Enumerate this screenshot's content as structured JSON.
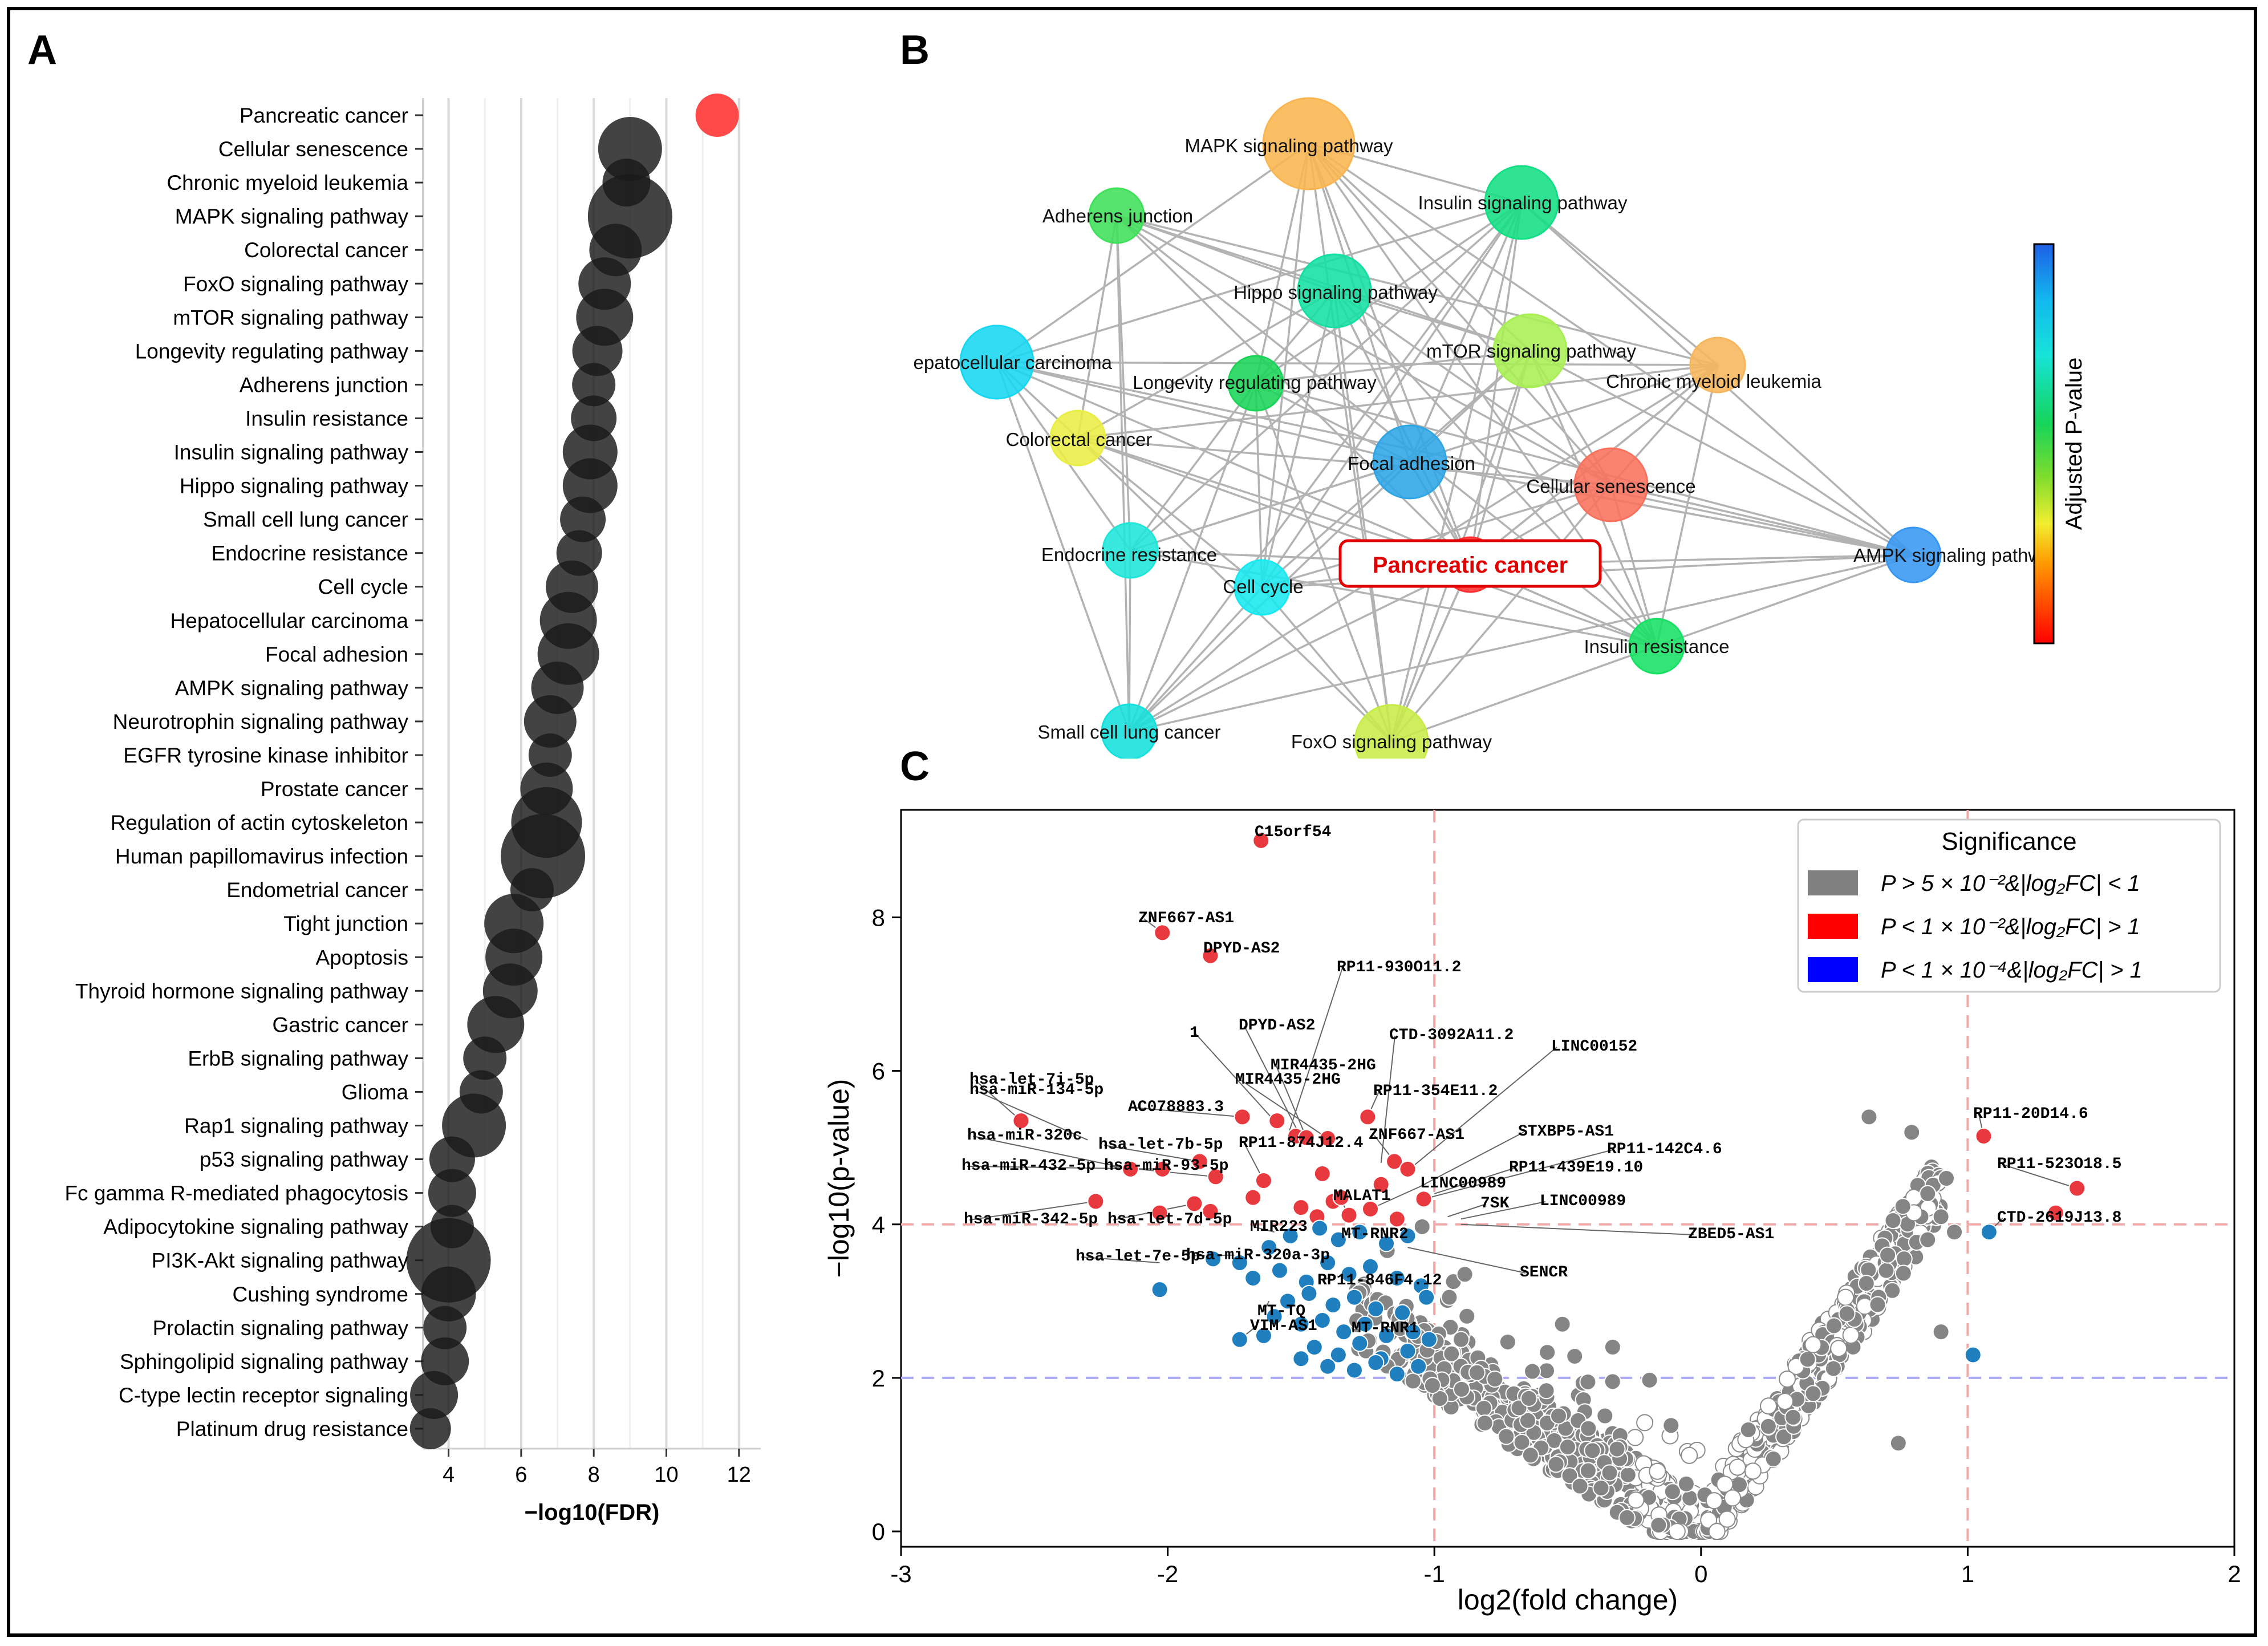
{
  "panels": {
    "a": "A",
    "b": "B",
    "c": "C"
  },
  "chart_data": [
    {
      "type": "scatter",
      "panel": "A",
      "xlabel": "−log10(FDR)",
      "xlim": [
        3.3,
        12.6
      ],
      "xticks": [
        4,
        6,
        8,
        10,
        12
      ],
      "categories": [
        "Pancreatic cancer",
        "Cellular senescence",
        "Chronic myeloid leukemia",
        "MAPK signaling pathway",
        "Colorectal cancer",
        "FoxO signaling pathway",
        "mTOR signaling pathway",
        "Longevity regulating pathway",
        "Adherens junction",
        "Insulin resistance",
        "Insulin signaling pathway",
        "Hippo signaling pathway",
        "Small cell lung cancer",
        "Endocrine resistance",
        "Cell cycle",
        "Hepatocellular carcinoma",
        "Focal adhesion",
        "AMPK signaling pathway",
        "Neurotrophin signaling pathway",
        "EGFR tyrosine kinase inhibitor",
        "Prostate cancer",
        "Regulation of actin cytoskeleton",
        "Human papillomavirus infection",
        "Endometrial cancer",
        "Tight junction",
        "Apoptosis",
        "Thyroid hormone signaling pathway",
        "Gastric cancer",
        "ErbB signaling pathway",
        "Glioma",
        "Rap1 signaling pathway",
        "p53 signaling pathway",
        "Fc gamma R-mediated phagocytosis",
        "Adipocytokine signaling pathway",
        "PI3K-Akt signaling pathway",
        "Cushing syndrome",
        "Prolactin signaling pathway",
        "Sphingolipid signaling pathway",
        "C-type lectin receptor signaling",
        "Platinum drug resistance"
      ],
      "values": [
        11.4,
        9.0,
        8.9,
        9.0,
        8.6,
        8.3,
        8.3,
        8.1,
        8.0,
        8.0,
        7.9,
        7.9,
        7.7,
        7.6,
        7.4,
        7.3,
        7.3,
        7.0,
        6.8,
        6.8,
        6.7,
        6.7,
        6.6,
        6.3,
        5.8,
        5.8,
        5.7,
        5.3,
        5.0,
        4.9,
        4.7,
        4.1,
        4.1,
        4.1,
        4.0,
        4.0,
        3.9,
        3.9,
        3.6,
        3.5
      ],
      "sizes": [
        38,
        56,
        42,
        74,
        46,
        46,
        50,
        44,
        38,
        40,
        48,
        48,
        40,
        40,
        46,
        50,
        54,
        46,
        46,
        38,
        46,
        62,
        74,
        38,
        52,
        50,
        48,
        50,
        38,
        38,
        56,
        40,
        42,
        38,
        74,
        48,
        38,
        42,
        42,
        36
      ],
      "highlight": "Pancreatic cancer",
      "colors": {
        "highlight": "#ff4a4a",
        "default": "#1a1a1a"
      }
    },
    {
      "type": "network",
      "panel": "B",
      "legend_title": "Adjusted P-value",
      "nodes": [
        {
          "label": "MAPK signaling pathway",
          "color": "#f9b650",
          "size": "large"
        },
        {
          "label": "Adherens junction",
          "color": "#3fe05a",
          "size": "small"
        },
        {
          "label": "Insulin signaling pathway",
          "color": "#12df84",
          "size": "medium"
        },
        {
          "label": "Hippo signaling pathway",
          "color": "#14dfa2",
          "size": "medium"
        },
        {
          "label": "Hepatocellular carcinoma",
          "color": "#17d7f0",
          "size": "medium"
        },
        {
          "label": "mTOR signaling pathway",
          "color": "#a8ef54",
          "size": "medium"
        },
        {
          "label": "Chronic myeloid leukemia",
          "color": "#f8b65c",
          "size": "small"
        },
        {
          "label": "Longevity regulating pathway",
          "color": "#1ad458",
          "size": "small"
        },
        {
          "label": "Colorectal cancer",
          "color": "#eaee43",
          "size": "small"
        },
        {
          "label": "Focal adhesion",
          "color": "#2ea5e5",
          "size": "medium"
        },
        {
          "label": "Cellular senescence",
          "color": "#f9715d",
          "size": "medium"
        },
        {
          "label": "Endocrine resistance",
          "color": "#1ee6d8",
          "size": "small"
        },
        {
          "label": "Cell cycle",
          "color": "#18e8ef",
          "size": "small"
        },
        {
          "label": "Pancreatic cancer",
          "color": "#ff3030",
          "size": "small"
        },
        {
          "label": "AMPK signaling pathway",
          "color": "#3797f2",
          "size": "small"
        },
        {
          "label": "Insulin resistance",
          "color": "#17e064",
          "size": "small"
        },
        {
          "label": "Small cell lung cancer",
          "color": "#14e0dc",
          "size": "small"
        },
        {
          "label": "FoxO signaling pathway",
          "color": "#c7ec48",
          "size": "medium"
        }
      ],
      "node_labels_display": [
        "MAPK signaling pathway",
        "Adherens junction",
        "Insulin signaling pathway",
        "Hippo signaling pathway",
        "epatocellular carcinoma",
        "mTOR signaling pathway",
        "Chronic myeloid leukemia",
        "Longevity regulating pathway",
        "Colorectal cancer",
        "Focal adhesion",
        "Cellular senescence",
        "Endocrine resistance",
        "Cell cycle",
        "Pancreatic cancer",
        "AMPK signaling pathwa",
        "Insulin resistance",
        "Small cell lung cancer",
        "FoxO signaling pathway"
      ]
    },
    {
      "type": "scatter",
      "panel": "C",
      "xlabel": "log2(fold change)",
      "ylabel": "−log10(p-value)",
      "xlim": [
        -3,
        2
      ],
      "ylim": [
        -0.2,
        9.4
      ],
      "xticks": [
        -3,
        -2,
        -1,
        0,
        1,
        2
      ],
      "yticks": [
        0,
        2,
        4,
        6,
        8
      ],
      "thresholds": {
        "x": [
          -1,
          1
        ],
        "y_red": 4,
        "y_blue": 2
      },
      "legend": {
        "title": "Significance",
        "entries": [
          {
            "text": "P > 5 × 10⁻²&|log₂FC| < 1",
            "color": "#808080"
          },
          {
            "text": "P < 1 × 10⁻²&|log₂FC| > 1",
            "color": "#ff0000"
          },
          {
            "text": "P < 1 × 10⁻⁴&|log₂FC| > 1",
            "color": "#0000ff"
          }
        ]
      },
      "colors": {
        "red": "#e8393f",
        "blue": "#1f7fbf",
        "grey": "#858585"
      },
      "red_points": [
        [
          -1.65,
          9.0
        ],
        [
          -2.02,
          7.8
        ],
        [
          -1.84,
          7.5
        ],
        [
          -2.55,
          5.35
        ],
        [
          -1.72,
          5.4
        ],
        [
          -1.59,
          5.35
        ],
        [
          -1.52,
          5.15
        ],
        [
          -1.48,
          5.13
        ],
        [
          -1.4,
          5.12
        ],
        [
          -1.25,
          5.4
        ],
        [
          -2.14,
          4.72
        ],
        [
          -2.02,
          4.72
        ],
        [
          -1.88,
          4.82
        ],
        [
          -1.82,
          4.62
        ],
        [
          -1.64,
          4.57
        ],
        [
          -1.42,
          4.66
        ],
        [
          -1.15,
          4.82
        ],
        [
          -1.1,
          4.72
        ],
        [
          -1.2,
          4.52
        ],
        [
          -2.27,
          4.3
        ],
        [
          -2.03,
          4.15
        ],
        [
          -1.9,
          4.27
        ],
        [
          -1.84,
          4.17
        ],
        [
          -1.68,
          4.35
        ],
        [
          -1.5,
          4.22
        ],
        [
          -1.38,
          4.3
        ],
        [
          -1.32,
          4.12
        ],
        [
          -1.24,
          4.2
        ],
        [
          -1.14,
          4.07
        ],
        [
          -1.04,
          4.33
        ],
        [
          -1.44,
          4.1
        ],
        [
          -1.35,
          4.35
        ],
        [
          1.06,
          5.15
        ],
        [
          1.41,
          4.47
        ],
        [
          1.33,
          4.15
        ]
      ],
      "blue_points": [
        [
          -2.03,
          3.15
        ],
        [
          -1.83,
          3.55
        ],
        [
          -1.73,
          3.5
        ],
        [
          -1.62,
          3.7
        ],
        [
          -1.54,
          3.85
        ],
        [
          -1.43,
          3.95
        ],
        [
          -1.36,
          3.8
        ],
        [
          -1.28,
          3.9
        ],
        [
          -1.18,
          3.75
        ],
        [
          -1.1,
          3.85
        ],
        [
          -1.68,
          3.3
        ],
        [
          -1.58,
          3.4
        ],
        [
          -1.48,
          3.25
        ],
        [
          -1.4,
          3.5
        ],
        [
          -1.32,
          3.35
        ],
        [
          -1.24,
          3.45
        ],
        [
          -1.14,
          3.3
        ],
        [
          -1.05,
          3.2
        ],
        [
          -1.55,
          3.0
        ],
        [
          -1.47,
          3.1
        ],
        [
          -1.38,
          2.95
        ],
        [
          -1.3,
          3.05
        ],
        [
          -1.22,
          2.9
        ],
        [
          -1.12,
          2.85
        ],
        [
          -1.03,
          3.05
        ],
        [
          -1.6,
          2.8
        ],
        [
          -1.5,
          2.7
        ],
        [
          -1.42,
          2.75
        ],
        [
          -1.34,
          2.6
        ],
        [
          -1.26,
          2.7
        ],
        [
          -1.18,
          2.55
        ],
        [
          -1.08,
          2.6
        ],
        [
          -1.73,
          2.5
        ],
        [
          -1.64,
          2.55
        ],
        [
          -1.45,
          2.4
        ],
        [
          -1.36,
          2.3
        ],
        [
          -1.28,
          2.45
        ],
        [
          -1.2,
          2.25
        ],
        [
          -1.1,
          2.35
        ],
        [
          -1.02,
          2.5
        ],
        [
          -1.5,
          2.25
        ],
        [
          -1.4,
          2.15
        ],
        [
          -1.3,
          2.1
        ],
        [
          -1.22,
          2.2
        ],
        [
          -1.14,
          2.05
        ],
        [
          -1.06,
          2.15
        ],
        [
          1.08,
          3.9
        ],
        [
          1.02,
          2.3
        ]
      ],
      "labels": [
        "C15orf54",
        "ZNF667-AS1",
        "DPYD-AS2",
        "RP11-930O11.2",
        "1",
        "DPYD-AS2",
        "CTD-3092A11.2",
        "LINC00152",
        "hsa-let-7i-5p",
        "MIR4435-2HG",
        "hsa-miR-134-5p",
        "MIR4435-2HG",
        "RP11-354E11.2",
        "AC078883.3",
        "hsa-miR-320c",
        "ZNF667-AS1",
        "STXBP5-AS1",
        "hsa-let-7b-5p",
        "RP11-874J12.4",
        "RP11-142C4.6",
        "hsa-miR-432-5p",
        "hsa-miR-93-5p",
        "RP11-439E19.10",
        "LINC00989",
        "MALAT1",
        "7SK",
        "LINC00989",
        "hsa-miR-342-5p",
        "hsa-let-7d-5p",
        "MIR223",
        "MT-RNR2",
        "ZBED5-AS1",
        "hsa-let-7e-5p",
        "hsa-miR-320a-3p",
        "SENCR",
        "RP11-846F4.12",
        "MT-TQ",
        "VIM-AS1",
        "MT-RNR1",
        "RP11-20D14.6",
        "RP11-523O18.5",
        "CTD-2619J13.8"
      ]
    }
  ]
}
